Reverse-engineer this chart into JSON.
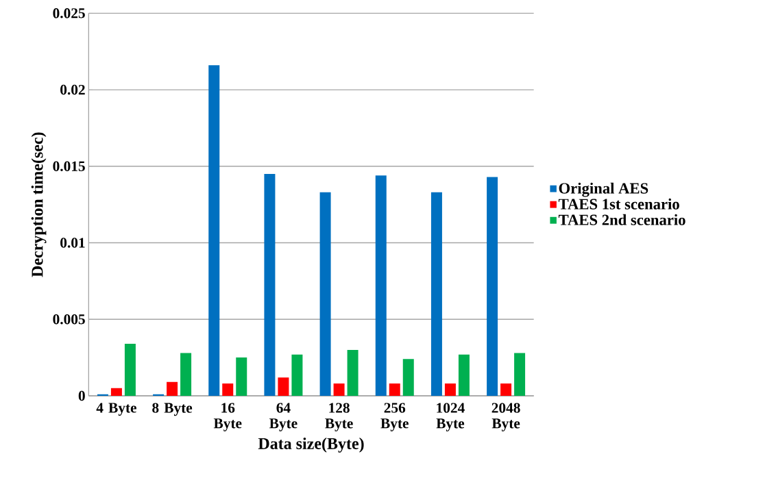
{
  "chart_data": {
    "type": "bar",
    "xlabel": "Data size(Byte)",
    "ylabel": "Decryption time(sec)",
    "categories": [
      "4 Byte",
      "8 Byte",
      "16 Byte",
      "64 Byte",
      "128 Byte",
      "256 Byte",
      "1024 Byte",
      "2048 Byte"
    ],
    "series": [
      {
        "name": "Original AES",
        "color": "#0070c0",
        "values": [
          0.0001,
          0.0001,
          0.0216,
          0.0145,
          0.0133,
          0.0144,
          0.0133,
          0.0143
        ]
      },
      {
        "name": "TAES 1st scenario",
        "color": "#ff0000",
        "values": [
          0.0005,
          0.0009,
          0.0008,
          0.0012,
          0.0008,
          0.0008,
          0.0008,
          0.0008
        ]
      },
      {
        "name": "TAES 2nd scenario",
        "color": "#00b050",
        "values": [
          0.0034,
          0.0028,
          0.0025,
          0.0027,
          0.003,
          0.0024,
          0.0027,
          0.0028
        ]
      }
    ],
    "ylim": [
      0,
      0.025
    ],
    "yticks": [
      0,
      0.005,
      0.01,
      0.015,
      0.02,
      0.025
    ],
    "grid": "y",
    "legend": "right"
  }
}
